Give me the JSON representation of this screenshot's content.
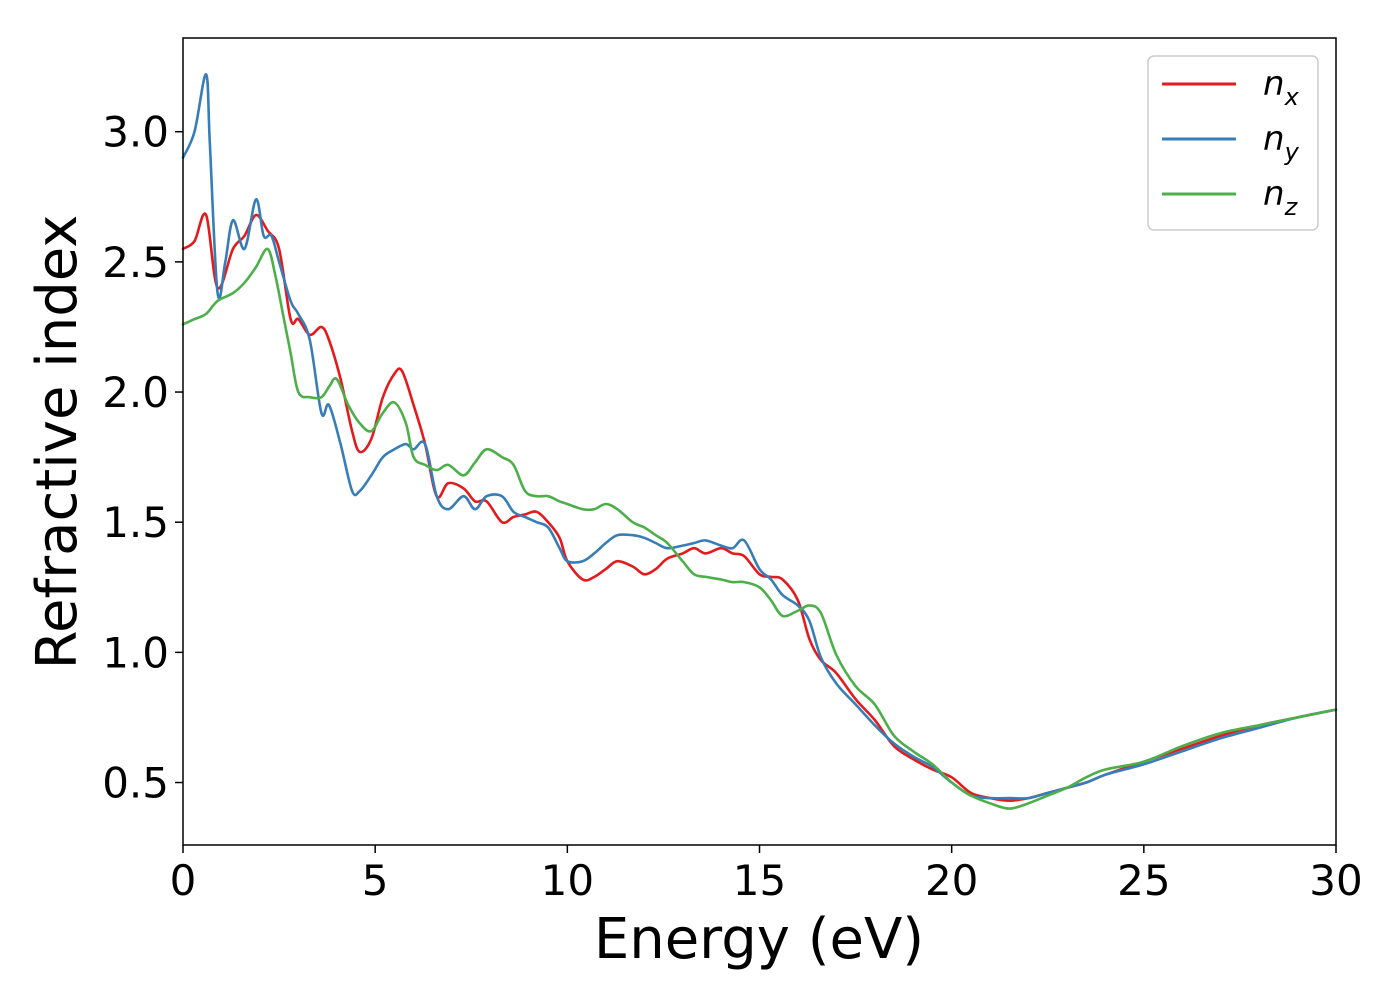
{
  "chart_data": {
    "type": "line",
    "title": "",
    "xlabel": "Energy (eV)",
    "ylabel": "Refractive index",
    "xlim": [
      0,
      30
    ],
    "ylim": [
      0.26,
      3.36
    ],
    "xticks": [
      0,
      5,
      10,
      15,
      20,
      25,
      30
    ],
    "xtick_labels": [
      "0",
      "5",
      "10",
      "15",
      "20",
      "25",
      "30"
    ],
    "yticks": [
      0.5,
      1.0,
      1.5,
      2.0,
      2.5,
      3.0
    ],
    "ytick_labels": [
      "0.5",
      "1.0",
      "1.5",
      "2.0",
      "2.5",
      "3.0"
    ],
    "grid": false,
    "legend_position": "top-right",
    "series": [
      {
        "name": "n_x",
        "legend_base": "n",
        "legend_sub": "x",
        "color": "#e41a1c",
        "x": [
          0,
          0.3,
          0.6,
          0.9,
          1.3,
          1.6,
          1.9,
          2.2,
          2.5,
          2.8,
          3.0,
          3.3,
          3.6,
          3.8,
          4.1,
          4.4,
          4.6,
          4.9,
          5.2,
          5.5,
          5.7,
          6.0,
          6.3,
          6.6,
          6.9,
          7.3,
          7.6,
          7.9,
          8.3,
          8.6,
          8.9,
          9.2,
          9.5,
          9.8,
          10.0,
          10.4,
          10.7,
          11.0,
          11.3,
          11.7,
          12.0,
          12.3,
          12.6,
          13.0,
          13.3,
          13.6,
          14.0,
          14.3,
          14.6,
          15.0,
          15.3,
          15.6,
          16.0,
          16.3,
          16.6,
          17.0,
          17.5,
          18.0,
          18.5,
          19.0,
          19.5,
          20.0,
          20.5,
          21.0,
          21.5,
          22.0,
          22.5,
          23.0,
          23.5,
          24.0,
          25.0,
          26.0,
          27.0,
          28.0,
          29.0,
          30.0
        ],
        "y": [
          2.55,
          2.58,
          2.68,
          2.4,
          2.55,
          2.6,
          2.68,
          2.62,
          2.55,
          2.28,
          2.28,
          2.22,
          2.25,
          2.2,
          2.05,
          1.85,
          1.77,
          1.82,
          1.98,
          2.07,
          2.08,
          1.95,
          1.8,
          1.6,
          1.65,
          1.63,
          1.58,
          1.58,
          1.5,
          1.52,
          1.53,
          1.54,
          1.5,
          1.44,
          1.35,
          1.28,
          1.29,
          1.32,
          1.35,
          1.33,
          1.3,
          1.32,
          1.36,
          1.38,
          1.4,
          1.38,
          1.4,
          1.38,
          1.37,
          1.3,
          1.29,
          1.28,
          1.2,
          1.05,
          0.97,
          0.92,
          0.82,
          0.74,
          0.64,
          0.59,
          0.55,
          0.52,
          0.46,
          0.44,
          0.43,
          0.44,
          0.46,
          0.48,
          0.5,
          0.53,
          0.58,
          0.63,
          0.68,
          0.72,
          0.75,
          0.78
        ]
      },
      {
        "name": "n_y",
        "legend_base": "n",
        "legend_sub": "y",
        "color": "#377eb8",
        "x": [
          0,
          0.3,
          0.6,
          0.7,
          0.9,
          1.1,
          1.3,
          1.6,
          1.9,
          2.1,
          2.3,
          2.5,
          2.8,
          3.0,
          3.3,
          3.6,
          3.8,
          4.1,
          4.4,
          4.6,
          4.9,
          5.2,
          5.5,
          5.8,
          6.0,
          6.3,
          6.6,
          6.9,
          7.3,
          7.6,
          7.9,
          8.3,
          8.6,
          8.9,
          9.2,
          9.5,
          9.8,
          10.0,
          10.4,
          10.7,
          11.0,
          11.3,
          11.7,
          12.0,
          12.3,
          12.6,
          13.0,
          13.3,
          13.6,
          14.0,
          14.3,
          14.6,
          15.0,
          15.3,
          15.6,
          16.0,
          16.3,
          16.6,
          17.0,
          17.5,
          18.0,
          18.5,
          19.0,
          19.5,
          20.0,
          20.5,
          21.0,
          21.5,
          22.0,
          22.5,
          23.0,
          23.5,
          24.0,
          25.0,
          26.0,
          27.0,
          28.0,
          29.0,
          30.0
        ],
        "y": [
          2.9,
          3.0,
          3.22,
          2.95,
          2.38,
          2.5,
          2.66,
          2.55,
          2.74,
          2.6,
          2.6,
          2.5,
          2.35,
          2.3,
          2.2,
          1.92,
          1.95,
          1.8,
          1.62,
          1.62,
          1.68,
          1.75,
          1.78,
          1.8,
          1.78,
          1.8,
          1.6,
          1.55,
          1.6,
          1.55,
          1.6,
          1.6,
          1.54,
          1.52,
          1.5,
          1.48,
          1.4,
          1.35,
          1.35,
          1.38,
          1.42,
          1.45,
          1.45,
          1.44,
          1.42,
          1.4,
          1.41,
          1.42,
          1.43,
          1.41,
          1.4,
          1.43,
          1.32,
          1.28,
          1.22,
          1.18,
          1.12,
          0.98,
          0.88,
          0.8,
          0.72,
          0.65,
          0.6,
          0.56,
          0.5,
          0.45,
          0.44,
          0.44,
          0.44,
          0.46,
          0.48,
          0.5,
          0.53,
          0.57,
          0.62,
          0.67,
          0.71,
          0.75,
          0.78
        ]
      },
      {
        "name": "n_z",
        "legend_base": "n",
        "legend_sub": "z",
        "color": "#4daf4a",
        "x": [
          0,
          0.3,
          0.6,
          0.9,
          1.3,
          1.6,
          1.9,
          2.2,
          2.4,
          2.6,
          2.8,
          3.0,
          3.3,
          3.6,
          3.8,
          4.0,
          4.3,
          4.6,
          4.9,
          5.2,
          5.5,
          5.8,
          6.0,
          6.3,
          6.6,
          6.9,
          7.3,
          7.6,
          7.9,
          8.3,
          8.6,
          8.9,
          9.2,
          9.5,
          9.8,
          10.0,
          10.4,
          10.7,
          11.0,
          11.3,
          11.7,
          12.0,
          12.3,
          12.6,
          13.0,
          13.3,
          13.6,
          14.0,
          14.3,
          14.6,
          15.0,
          15.3,
          15.6,
          16.0,
          16.3,
          16.6,
          17.0,
          17.5,
          18.0,
          18.5,
          19.0,
          19.5,
          20.0,
          20.5,
          21.0,
          21.5,
          22.0,
          22.5,
          23.0,
          23.5,
          24.0,
          25.0,
          26.0,
          27.0,
          28.0,
          29.0,
          30.0
        ],
        "y": [
          2.26,
          2.28,
          2.3,
          2.35,
          2.38,
          2.42,
          2.48,
          2.55,
          2.45,
          2.3,
          2.15,
          2.0,
          1.98,
          1.98,
          2.02,
          2.05,
          1.95,
          1.88,
          1.85,
          1.92,
          1.96,
          1.88,
          1.75,
          1.72,
          1.7,
          1.72,
          1.68,
          1.73,
          1.78,
          1.75,
          1.72,
          1.62,
          1.6,
          1.6,
          1.58,
          1.57,
          1.55,
          1.55,
          1.57,
          1.55,
          1.5,
          1.48,
          1.45,
          1.42,
          1.35,
          1.3,
          1.29,
          1.28,
          1.27,
          1.27,
          1.25,
          1.2,
          1.14,
          1.16,
          1.18,
          1.15,
          0.99,
          0.87,
          0.8,
          0.68,
          0.62,
          0.57,
          0.5,
          0.45,
          0.42,
          0.4,
          0.42,
          0.45,
          0.48,
          0.52,
          0.55,
          0.58,
          0.64,
          0.69,
          0.72,
          0.75,
          0.78
        ]
      }
    ]
  }
}
